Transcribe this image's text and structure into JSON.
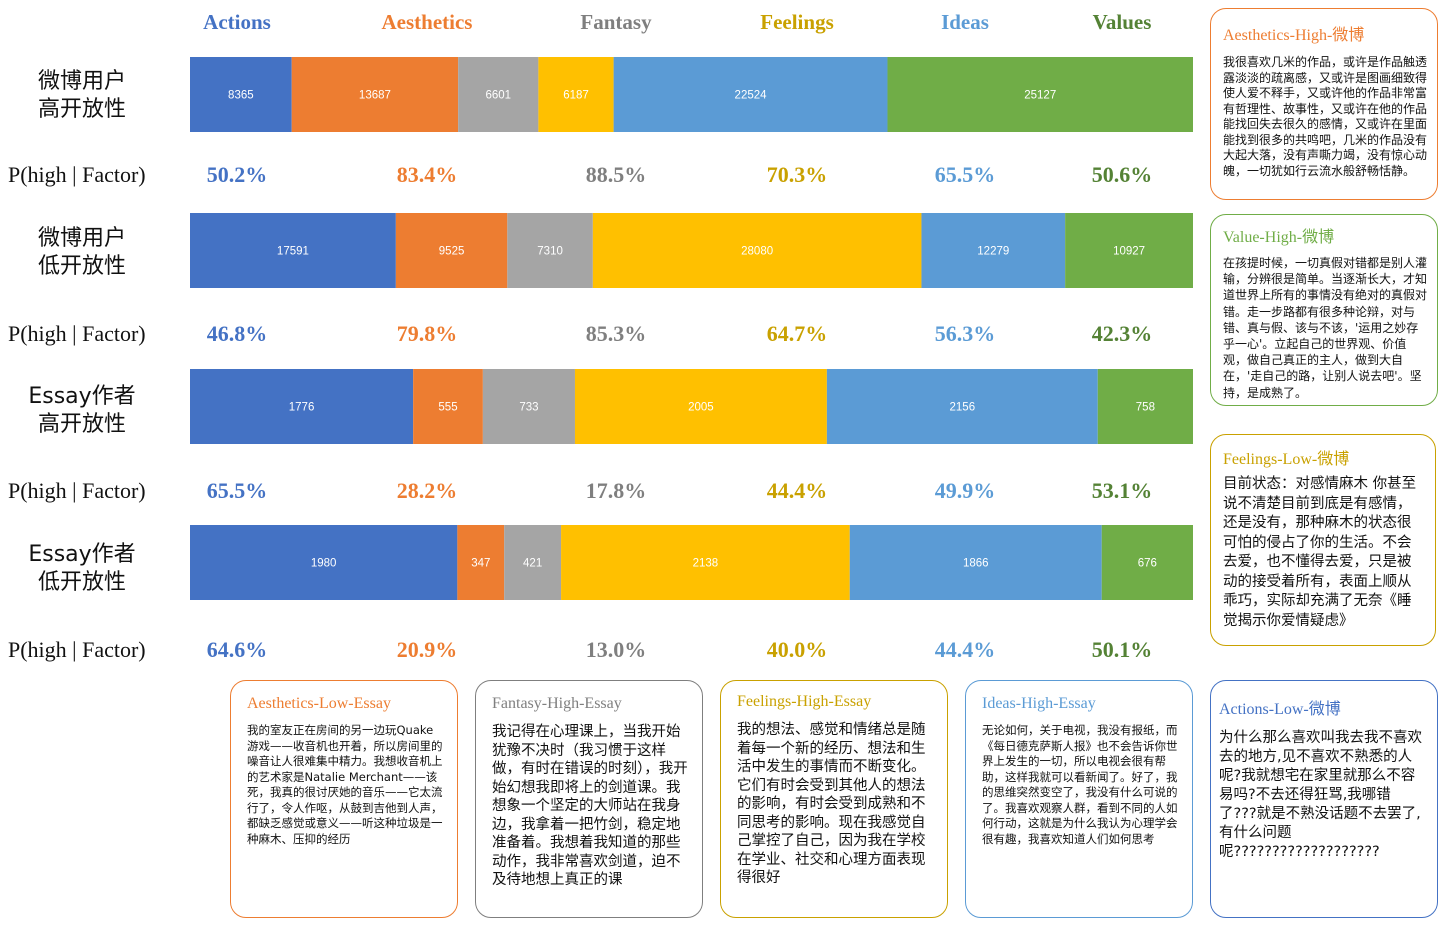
{
  "colors": {
    "Actions": "#4472C4",
    "Aesthetics": "#ED7D31",
    "Fantasy": "#A5A5A5",
    "Feelings": "#FFC000",
    "Ideas": "#5B9BD5",
    "Values": "#70AD47"
  },
  "pct_colors": {
    "Actions": "#4472C4",
    "Aesthetics": "#ED7D31",
    "Fantasy": "#7F7F7F",
    "Feelings": "#C9A100",
    "Ideas": "#5B9BD5",
    "Values": "#548235"
  },
  "header_colors": {
    "Actions": "#4472C4",
    "Aesthetics": "#ED7D31",
    "Fantasy": "#7F7F7F",
    "Feelings": "#C9A100",
    "Ideas": "#5B9BD5",
    "Values": "#548235"
  },
  "p_label": "P(high | Factor)",
  "chart_data": {
    "type": "bar",
    "orientation": "horizontal-stacked-100",
    "categories": [
      "Actions",
      "Aesthetics",
      "Fantasy",
      "Feelings",
      "Ideas",
      "Values"
    ],
    "rows": [
      {
        "label_lines": [
          "微博用户",
          "高开放性"
        ],
        "values": [
          8365,
          13687,
          6601,
          6187,
          22524,
          25127
        ],
        "p_high": [
          "50.2%",
          "83.4%",
          "88.5%",
          "70.3%",
          "65.5%",
          "50.6%"
        ]
      },
      {
        "label_lines": [
          "微博用户",
          "低开放性"
        ],
        "values": [
          17591,
          9525,
          7310,
          28080,
          12279,
          10927
        ],
        "p_high": [
          "46.8%",
          "79.8%",
          "85.3%",
          "64.7%",
          "56.3%",
          "42.3%"
        ]
      },
      {
        "label_lines": [
          "Essay作者",
          "高开放性"
        ],
        "values": [
          1776,
          555,
          733,
          2005,
          2156,
          758
        ],
        "p_high": [
          "65.5%",
          "28.2%",
          "17.8%",
          "44.4%",
          "49.9%",
          "53.1%"
        ]
      },
      {
        "label_lines": [
          "Essay作者",
          "低开放性"
        ],
        "values": [
          1980,
          347,
          421,
          2138,
          1866,
          676
        ],
        "p_high": [
          "64.6%",
          "20.9%",
          "13.0%",
          "40.0%",
          "44.4%",
          "50.1%"
        ]
      }
    ]
  },
  "side_boxes": [
    {
      "title": "Aesthetics-High-微博",
      "color": "#ED7D31",
      "text": "我很喜欢几米的作品，或许是作品触透露淡淡的疏离感，又或许是图画细致得使人爱不释手，又或许他的作品非常富有哲理性、故事性，又或许在他的作品能找回失去很久的感情，又或许在里面能找到很多的共鸣吧，几米的作品没有大起大落，没有声嘶力竭，没有惊心动魄，一切犹如行云流水般舒畅恬静。"
    },
    {
      "title": "Value-High-微博",
      "color": "#70AD47",
      "text": "在孩提时候，一切真假对错都是别人灌输，分辨很是简单。当逐渐长大，才知道世界上所有的事情没有绝对的真假对错。走一步路都有很多种论辩，对与错、真与假、该与不该，'运用之妙存乎一心'。立起自己的世界观、价值观，做自己真正的主人，做到大自在，'走自己的路，让别人说去吧'。坚持，是成熟了。"
    },
    {
      "title": "Feelings-Low-微博",
      "color": "#C9A100",
      "text": "目前状态：对感情麻木 你甚至说不清楚目前到底是有感情，还是没有，那种麻木的状态很可怕的侵占了你的生活。不会去爱，也不懂得去爱，只是被动的接受着所有，表面上顺从乖巧，实际却充满了无奈《睡觉揭示你爱情疑虑》"
    }
  ],
  "bottom_boxes": [
    {
      "title": "Aesthetics-Low-Essay",
      "color": "#ED7D31",
      "text": "我的室友正在房间的另一边玩Quake游戏——收音机也开着，所以房间里的噪音让人很难集中精力。我想收音机上的艺术家是Natalie Merchant——该死，我真的很讨厌她的音乐——它太流行了，令人作呕，从鼓到吉他到人声，都缺乏感觉或意义——听这种垃圾是一种麻木、压抑的经历"
    },
    {
      "title": "Fantasy-High-Essay",
      "color": "#7F7F7F",
      "text": "我记得在心理课上，当我开始犹豫不决时（我习惯于这样做，有时在错误的时刻），我开始幻想我即将上的剑道课。我想象一个坚定的大师站在我身边，我拿着一把竹剑，稳定地准备着。我想着我知道的那些动作，我非常喜欢剑道，迫不及待地想上真正的课"
    },
    {
      "title": "Feelings-High-Essay",
      "color": "#C9A100",
      "text": "我的想法、感觉和情绪总是随着每一个新的经历、想法和生活中发生的事情而不断变化。它们有时会受到其他人的想法的影响，有时会受到成熟和不同思考的影响。现在我感觉自己掌控了自己，因为我在学校在学业、社交和心理方面表现得很好"
    },
    {
      "title": "Ideas-High-Essay",
      "color": "#5B9BD5",
      "text": "无论如何，关于电视，我没有报纸，而《每日德克萨斯人报》也不会告诉你世界上发生的一切，所以电视会很有帮助，这样我就可以看新闻了。好了，我的思维突然变空了，我没有什么可说的了。我喜欢观察人群，看到不同的人如何行动，这就是为什么我认为心理学会很有趣，我喜欢知道人们如何思考"
    },
    {
      "title": "Actions-Low-微博",
      "color": "#4472C4",
      "text": "为什么那么喜欢叫我去我不喜欢去的地方,见不喜欢不熟悉的人呢?我就想宅在家里就那么不容易吗?不去还得狂骂,我哪错了???就是不熟没话题不去罢了,有什么问题呢???????????????????"
    }
  ]
}
